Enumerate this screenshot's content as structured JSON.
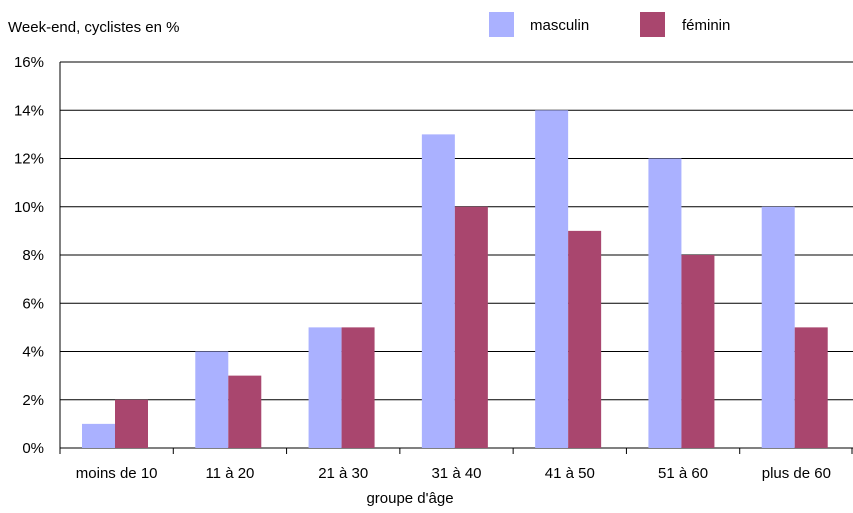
{
  "chart_data": {
    "type": "bar",
    "title": "Week-end, cyclistes en %",
    "xlabel": "groupe d'âge",
    "ylabel": "",
    "categories": [
      "moins de 10",
      "11 à 20",
      "21 à 30",
      "31 à 40",
      "41 à 50",
      "51 à 60",
      "plus de 60"
    ],
    "series": [
      {
        "name": "masculin",
        "values": [
          1,
          4,
          5,
          13,
          14,
          12,
          10
        ],
        "color": "#aab1ff"
      },
      {
        "name": "féminin",
        "values": [
          2,
          3,
          5,
          10,
          9,
          8,
          5
        ],
        "color": "#a9466e"
      }
    ],
    "ylim": [
      0,
      16
    ],
    "yticks": [
      0,
      2,
      4,
      6,
      8,
      10,
      12,
      14,
      16
    ],
    "ytick_labels": [
      "0%",
      "2%",
      "4%",
      "6%",
      "8%",
      "10%",
      "12%",
      "14%",
      "16%"
    ],
    "grid": true,
    "legend_position": "top-right"
  }
}
